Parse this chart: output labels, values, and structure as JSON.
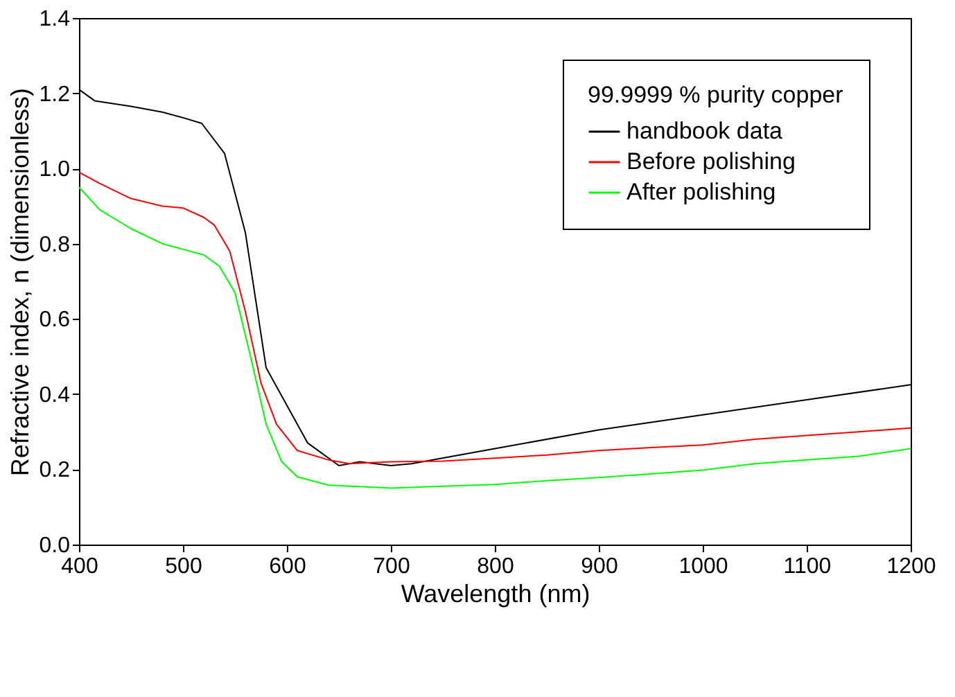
{
  "chart_data": {
    "type": "line",
    "xlabel": "Wavelength (nm)",
    "ylabel": "Refractive index, n (dimensionless)",
    "legend_title": "99.9999 % purity copper",
    "xlim": [
      400,
      1200
    ],
    "xticks": [
      400,
      500,
      600,
      700,
      800,
      900,
      1000,
      1100,
      1200
    ],
    "ylim": [
      0,
      1.4
    ],
    "yticks": [
      {
        "value": 0,
        "label": "0.0"
      },
      0.2,
      0.4,
      0.6,
      0.8,
      {
        "value": 1,
        "label": "1.0"
      },
      1.2,
      1.4
    ],
    "grid": false,
    "legend": "top right",
    "line_style": "solid",
    "marker": "none",
    "series": [
      {
        "name": "handbook data",
        "color": "#000000",
        "x": [
          400,
          415,
          450,
          480,
          500,
          518,
          540,
          560,
          580,
          620,
          650,
          670,
          700,
          720,
          800,
          900,
          1000,
          1100,
          1200
        ],
        "values": [
          1.21,
          1.18,
          1.165,
          1.15,
          1.135,
          1.12,
          1.04,
          0.83,
          0.47,
          0.27,
          0.21,
          0.22,
          0.21,
          0.215,
          0.255,
          0.305,
          0.345,
          0.385,
          0.425
        ]
      },
      {
        "name": "Before polishing",
        "color": "#ff0000",
        "x": [
          400,
          420,
          450,
          480,
          500,
          520,
          530,
          545,
          560,
          575,
          590,
          610,
          640,
          660,
          700,
          750,
          800,
          850,
          900,
          950,
          1000,
          1050,
          1100,
          1150,
          1200
        ],
        "values": [
          0.99,
          0.96,
          0.92,
          0.9,
          0.895,
          0.87,
          0.85,
          0.78,
          0.62,
          0.43,
          0.32,
          0.25,
          0.225,
          0.215,
          0.22,
          0.222,
          0.23,
          0.238,
          0.25,
          0.258,
          0.265,
          0.28,
          0.29,
          0.3,
          0.31
        ]
      },
      {
        "name": "After polishing",
        "color": "#00ff00",
        "x": [
          400,
          420,
          450,
          480,
          500,
          520,
          535,
          550,
          565,
          580,
          595,
          610,
          640,
          700,
          750,
          800,
          850,
          900,
          950,
          1000,
          1050,
          1100,
          1150,
          1200
        ],
        "values": [
          0.95,
          0.89,
          0.84,
          0.8,
          0.785,
          0.77,
          0.74,
          0.67,
          0.5,
          0.32,
          0.22,
          0.18,
          0.158,
          0.15,
          0.155,
          0.16,
          0.17,
          0.178,
          0.188,
          0.198,
          0.215,
          0.225,
          0.235,
          0.255
        ]
      }
    ]
  }
}
